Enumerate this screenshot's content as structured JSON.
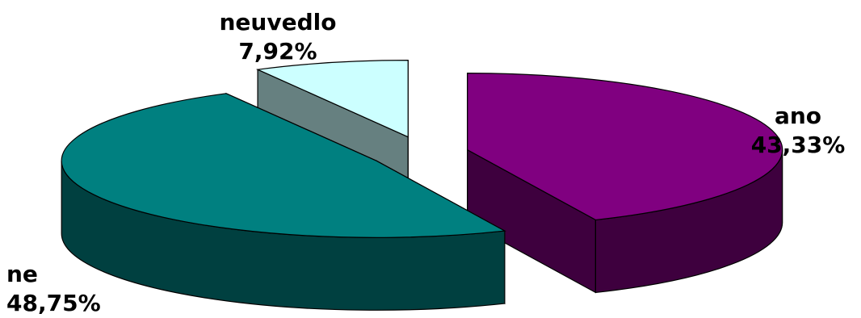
{
  "chart_data": {
    "type": "pie",
    "title": "",
    "labels": [
      "ano",
      "ne",
      "neuvedlo"
    ],
    "values": [
      43.33,
      48.75,
      7.92
    ],
    "value_labels": [
      "43,33%",
      "48,75%",
      "7,92%"
    ],
    "colors": [
      "#800080",
      "#008080",
      "#CCFFFF"
    ],
    "side_colors": [
      "#3E003E",
      "#004040",
      "#668080"
    ],
    "exploded": true,
    "three_d": true,
    "legend": "none"
  }
}
